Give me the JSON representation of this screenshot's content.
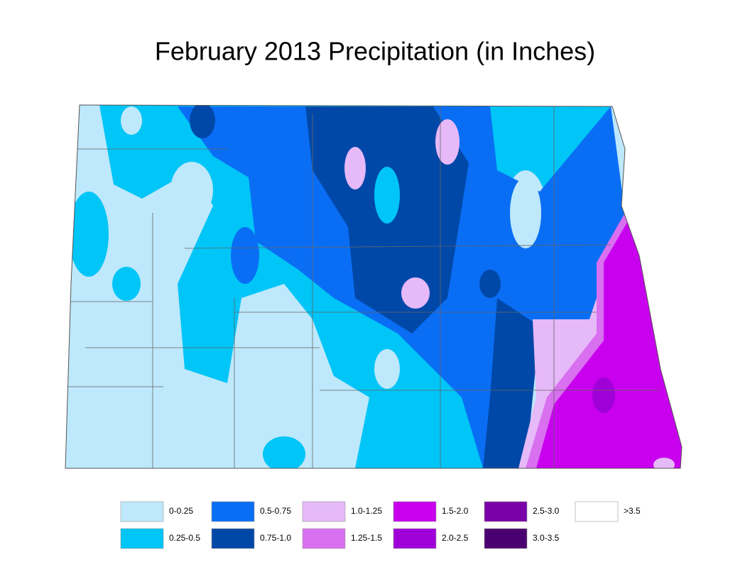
{
  "title": "February 2013 Precipitation (in Inches)",
  "legend": [
    {
      "label": "0-0.25",
      "color": "#bee8fb"
    },
    {
      "label": "0.25-0.5",
      "color": "#00c5f7"
    },
    {
      "label": "0.5-0.75",
      "color": "#0a6ef5"
    },
    {
      "label": "0.75-1.0",
      "color": "#0048a8"
    },
    {
      "label": "1.0-1.25",
      "color": "#e6b9f8"
    },
    {
      "label": "1.25-1.5",
      "color": "#d870f0"
    },
    {
      "label": "1.5-2.0",
      "color": "#c800ee"
    },
    {
      "label": "2.0-2.5",
      "color": "#a000d8"
    },
    {
      "label": "2.5-3.0",
      "color": "#7a00a8"
    },
    {
      "label": "3.0-3.5",
      "color": "#4a0070"
    },
    {
      "label": ">3.5",
      "color": "#ffffff"
    }
  ]
}
